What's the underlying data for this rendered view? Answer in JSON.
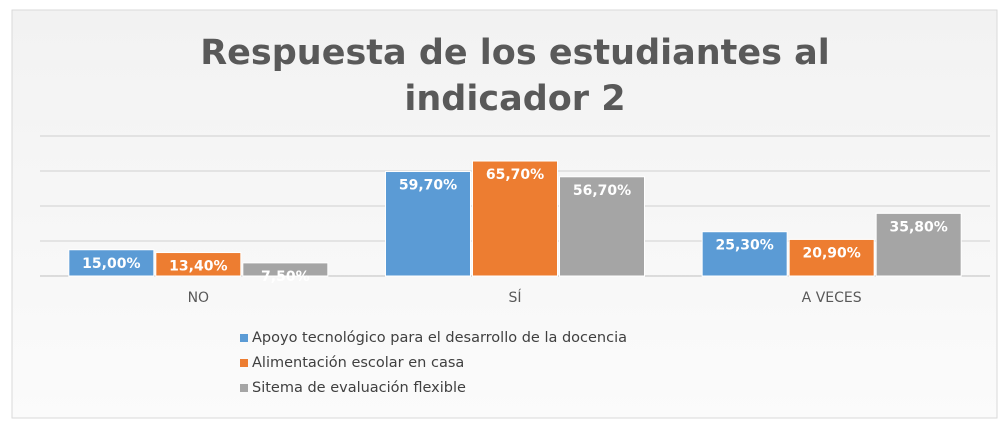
{
  "chart_data": {
    "type": "bar",
    "title": "Respuesta de los estudiantes al indicador 2",
    "categories": [
      "NO",
      "SÍ",
      "A VECES"
    ],
    "series": [
      {
        "name": "Apoyo tecnológico para el desarrollo de la docencia",
        "color": "#5b9bd5",
        "values": [
          15.0,
          59.7,
          25.3
        ],
        "value_labels": [
          "15,00%",
          "59,70%",
          "25,30%"
        ]
      },
      {
        "name": "Alimentación escolar en casa",
        "color": "#ed7d31",
        "values": [
          13.4,
          65.7,
          20.9
        ],
        "value_labels": [
          "13,40%",
          "65,70%",
          "20,90%"
        ]
      },
      {
        "name": "Sitema de evaluación flexible",
        "color": "#a5a5a5",
        "values": [
          7.5,
          56.7,
          35.8
        ],
        "value_labels": [
          "7,50%",
          "56,70%",
          "35,80%"
        ]
      }
    ],
    "ylim": [
      0,
      80
    ],
    "yticks": [
      0,
      20,
      40,
      60,
      80
    ],
    "grid": true
  }
}
